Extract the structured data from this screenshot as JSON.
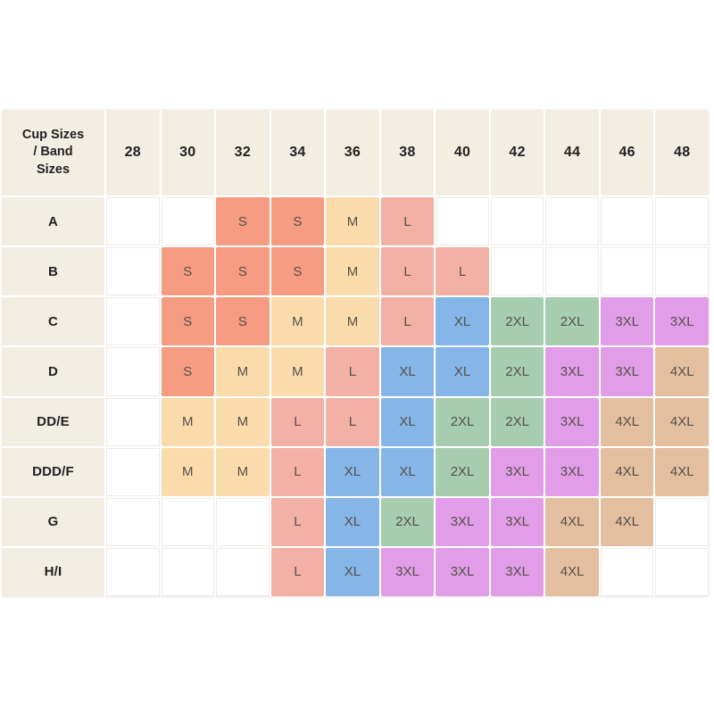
{
  "chart_data": {
    "type": "table",
    "title": "Cup Sizes / Band Sizes",
    "corner_label": "Cup Sizes / Band Sizes",
    "band_sizes": [
      "28",
      "30",
      "32",
      "34",
      "36",
      "38",
      "40",
      "42",
      "44",
      "46",
      "48"
    ],
    "cup_rows": [
      {
        "cup": "A",
        "cells": [
          "",
          "",
          "S",
          "S",
          "M",
          "L",
          "",
          "",
          "",
          "",
          ""
        ]
      },
      {
        "cup": "B",
        "cells": [
          "",
          "S",
          "S",
          "S",
          "M",
          "L",
          "L",
          "",
          "",
          "",
          ""
        ]
      },
      {
        "cup": "C",
        "cells": [
          "",
          "S",
          "S",
          "M",
          "M",
          "L",
          "XL",
          "2XL",
          "2XL",
          "3XL",
          "3XL"
        ]
      },
      {
        "cup": "D",
        "cells": [
          "",
          "S",
          "M",
          "M",
          "L",
          "XL",
          "XL",
          "2XL",
          "3XL",
          "3XL",
          "4XL"
        ]
      },
      {
        "cup": "DD/E",
        "cells": [
          "",
          "M",
          "M",
          "L",
          "L",
          "XL",
          "2XL",
          "2XL",
          "3XL",
          "4XL",
          "4XL"
        ]
      },
      {
        "cup": "DDD/F",
        "cells": [
          "",
          "M",
          "M",
          "L",
          "XL",
          "XL",
          "2XL",
          "3XL",
          "3XL",
          "4XL",
          "4XL"
        ]
      },
      {
        "cup": "G",
        "cells": [
          "",
          "",
          "",
          "L",
          "XL",
          "2XL",
          "3XL",
          "3XL",
          "4XL",
          "4XL",
          ""
        ]
      },
      {
        "cup": "H/I",
        "cells": [
          "",
          "",
          "",
          "L",
          "XL",
          "3XL",
          "3XL",
          "3XL",
          "4XL",
          "",
          ""
        ]
      }
    ],
    "size_colors": {
      "S": "#F59C82",
      "M": "#FADCAC",
      "L": "#F3B0A5",
      "XL": "#85B6E7",
      "2XL": "#A7CDAF",
      "3XL": "#E19DE8",
      "4XL": "#E3BF9F"
    }
  },
  "colors": {
    "page_bg": "#FFFFFF",
    "header_bg": "#F2EEE2",
    "header_text": "#212121",
    "cell_text": "#56514B",
    "empty_cell_bg": "#FFFFFF",
    "empty_cell_border": "#EDEBE6"
  }
}
